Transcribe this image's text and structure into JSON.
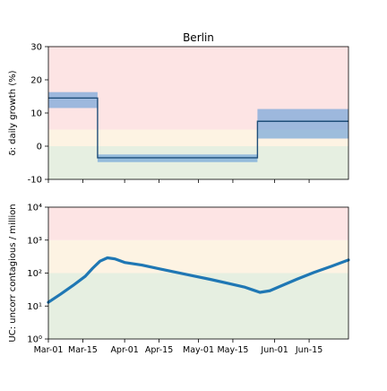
{
  "chart_data": [
    {
      "type": "line",
      "title": "Berlin",
      "xlabel": "",
      "ylabel": "δ: daily growth (%)",
      "ylim": [
        -10,
        30
      ],
      "yticks": [
        -10,
        0,
        10,
        20,
        30
      ],
      "x_range_days": [
        0,
        122
      ],
      "xtick_days": [
        0,
        14,
        31,
        45,
        61,
        75,
        92,
        106
      ],
      "xtick_labels": [
        "Mar-01",
        "Mar-15",
        "Apr-01",
        "Apr-15",
        "May-01",
        "May-15",
        "Jun-01",
        "Jun-15"
      ],
      "zones": [
        {
          "from": -10,
          "to": 0,
          "color": "#e6efe1"
        },
        {
          "from": 0,
          "to": 5,
          "color": "#fdf3e3"
        },
        {
          "from": 5,
          "to": 30,
          "color": "#fde4e4"
        }
      ],
      "segments": [
        {
          "x_start": 0,
          "x_end": 20,
          "value": 14.5,
          "band": [
            11.5,
            16.3
          ]
        },
        {
          "x_start": 20,
          "x_end": 85,
          "value": -3.5,
          "band": [
            -4.8,
            -2.5
          ]
        },
        {
          "x_start": 85,
          "x_end": 122,
          "value": 7.5,
          "band": [
            2.3,
            11.2
          ]
        }
      ],
      "line_color": "#1f4e79",
      "band_color": "#6a9fd8"
    },
    {
      "type": "line",
      "title": "",
      "xlabel": "",
      "ylabel": "UC: uncorr contagious / million",
      "yscale": "log",
      "ylim": [
        1,
        10000
      ],
      "yticks": [
        1,
        10,
        100,
        1000,
        10000
      ],
      "ytick_labels": [
        "10⁰",
        "10¹",
        "10²",
        "10³",
        "10⁴"
      ],
      "zones": [
        {
          "from": 1,
          "to": 100,
          "color": "#e6efe1"
        },
        {
          "from": 100,
          "to": 1000,
          "color": "#fdf3e3"
        },
        {
          "from": 1000,
          "to": 10000,
          "color": "#fde4e4"
        }
      ],
      "series": [
        {
          "x": [
            0,
            5,
            10,
            15,
            18,
            21,
            24,
            27,
            31,
            38,
            45,
            52,
            59,
            66,
            73,
            80,
            83,
            86,
            90,
            95,
            101,
            108,
            115,
            122
          ],
          "values": [
            13,
            23,
            42,
            80,
            140,
            230,
            290,
            270,
            210,
            175,
            135,
            105,
            82,
            64,
            49,
            37,
            31,
            26,
            29,
            42,
            65,
            105,
            160,
            250
          ]
        }
      ],
      "line_color": "#1f77b4"
    }
  ]
}
